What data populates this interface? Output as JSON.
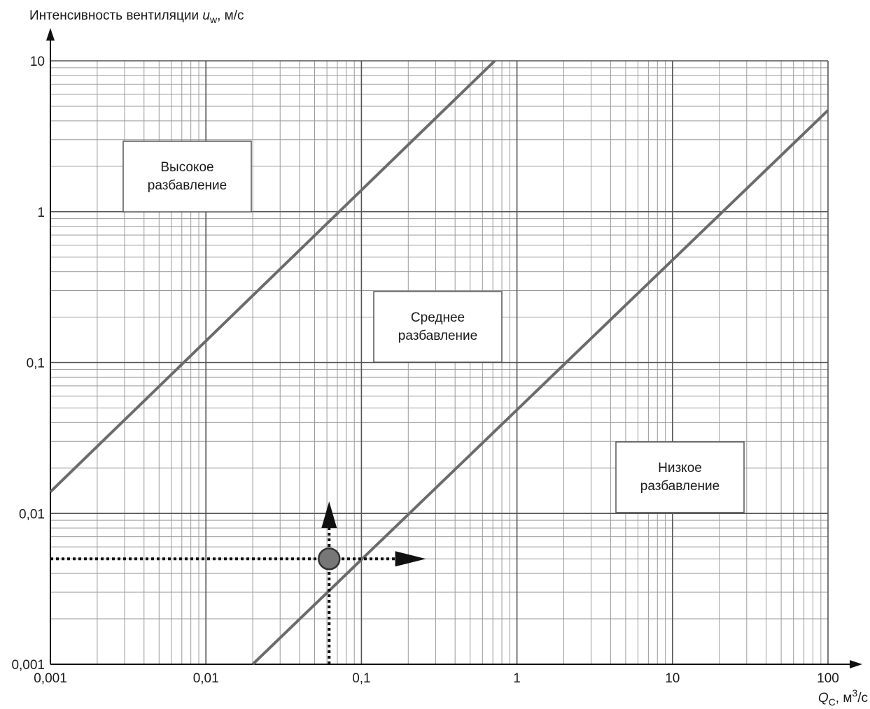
{
  "chart_data": {
    "type": "line",
    "y_label": {
      "text": "Интенсивность вентиляции ",
      "var": "u",
      "sub": "w",
      "unit": ", м/с"
    },
    "x_label": {
      "var": "Q",
      "sub": "C",
      "unit": ", м",
      "sup": "3",
      "tail": "/с"
    },
    "log_x": true,
    "log_y": true,
    "grid": true,
    "xlim": [
      0.001,
      100
    ],
    "ylim": [
      0.001,
      10
    ],
    "xticks": [
      {
        "value": 0.001,
        "label": "0,001"
      },
      {
        "value": 0.01,
        "label": "0,01"
      },
      {
        "value": 0.1,
        "label": "0,1"
      },
      1,
      10,
      100
    ],
    "yticks": [
      {
        "value": 0.001,
        "label": "0,001"
      },
      {
        "value": 0.01,
        "label": "0,01"
      },
      {
        "value": 0.1,
        "label": "0,1"
      },
      1,
      10
    ],
    "xminorticks": [
      0.002,
      0.003,
      0.004,
      0.005,
      0.006,
      0.007,
      0.008,
      0.009,
      0.02,
      0.03,
      0.04,
      0.05,
      0.06,
      0.07,
      0.08,
      0.09,
      0.2,
      0.3,
      0.4,
      0.5,
      0.6,
      0.7,
      0.8,
      0.9,
      2,
      3,
      4,
      5,
      6,
      7,
      8,
      9,
      20,
      30,
      40,
      50,
      60,
      70,
      80,
      90
    ],
    "yminorticks": [
      0.002,
      0.003,
      0.004,
      0.005,
      0.006,
      0.007,
      0.008,
      0.009,
      0.02,
      0.03,
      0.04,
      0.05,
      0.06,
      0.07,
      0.08,
      0.09,
      0.2,
      0.3,
      0.4,
      0.5,
      0.6,
      0.7,
      0.8,
      0.9,
      2,
      3,
      4,
      5,
      6,
      7,
      8,
      9
    ],
    "lines": [
      {
        "x": [
          0.001,
          0.72
        ],
        "y": [
          0.0139,
          10
        ],
        "color": "#6b6b6b"
      },
      {
        "x": [
          0.02,
          100
        ],
        "y": [
          0.001,
          4.7
        ],
        "color": "#6b6b6b"
      }
    ],
    "point": {
      "x": 0.062,
      "y": 0.005,
      "color": "#777777"
    },
    "arrow_to": {
      "x": 0.26,
      "y": 0.012
    },
    "annotations": [
      {
        "lines": [
          "Высокое",
          "разбавление"
        ]
      },
      {
        "lines": [
          "Среднее",
          "разбавление"
        ]
      },
      {
        "lines": [
          "Низкое",
          "разбавление"
        ]
      }
    ]
  }
}
